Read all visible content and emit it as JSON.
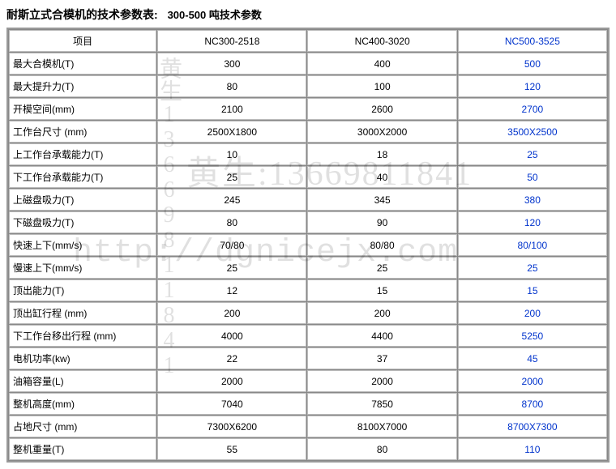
{
  "title_main": "耐斯立式合模机的技术参数表:",
  "title_sub": "300-500 吨技术参数",
  "headers": {
    "item": "项目",
    "c1": "NC300-2518",
    "c2": "NC400-3020",
    "c3": "NC500-3525"
  },
  "rows": [
    {
      "label": "最大合模机(T)",
      "c1": "300",
      "c2": "400",
      "c3": "500"
    },
    {
      "label": "最大提升力(T)",
      "c1": "80",
      "c2": "100",
      "c3": "120"
    },
    {
      "label": "开模空间(mm)",
      "c1": "2100",
      "c2": "2600",
      "c3": "2700"
    },
    {
      "label": "工作台尺寸 (mm)",
      "c1": "2500X1800",
      "c2": "3000X2000",
      "c3": "3500X2500"
    },
    {
      "label": "上工作台承载能力(T)",
      "c1": "10",
      "c2": "18",
      "c3": "25"
    },
    {
      "label": "下工作台承载能力(T)",
      "c1": "25",
      "c2": "40",
      "c3": "50"
    },
    {
      "label": "上磁盘吸力(T)",
      "c1": "245",
      "c2": "345",
      "c3": "380"
    },
    {
      "label": "下磁盘吸力(T)",
      "c1": "80",
      "c2": "90",
      "c3": "120"
    },
    {
      "label": "快速上下(mm/s)",
      "c1": "70/80",
      "c2": "80/80",
      "c3": "80/100"
    },
    {
      "label": "慢速上下(mm/s)",
      "c1": "25",
      "c2": "25",
      "c3": "25"
    },
    {
      "label": "顶出能力(T)",
      "c1": "12",
      "c2": "15",
      "c3": "15"
    },
    {
      "label": "顶出缸行程 (mm)",
      "c1": "200",
      "c2": "200",
      "c3": "200"
    },
    {
      "label": "下工作台移出行程 (mm)",
      "c1": "4000",
      "c2": "4400",
      "c3": "5250"
    },
    {
      "label": "电机功率(kw)",
      "c1": "22",
      "c2": "37",
      "c3": "45"
    },
    {
      "label": "油箱容量(L)",
      "c1": "2000",
      "c2": "2000",
      "c3": "2000"
    },
    {
      "label": "整机高度(mm)",
      "c1": "7040",
      "c2": "7850",
      "c3": "8700"
    },
    {
      "label": "占地尺寸 (mm)",
      "c1": "7300X6200",
      "c2": "8100X7000",
      "c3": "8700X7300"
    },
    {
      "label": "整机重量(T)",
      "c1": "55",
      "c2": "80",
      "c3": "110"
    }
  ],
  "watermark": {
    "vert": "黄生13669811841",
    "phone": "黄生:13669811841",
    "url": "http://dgnicejx.com"
  },
  "colors": {
    "highlight": "#0033cc",
    "border": "#999999",
    "cell_border": "#bbbbbb",
    "wm": "rgba(0,0,0,0.12)"
  }
}
